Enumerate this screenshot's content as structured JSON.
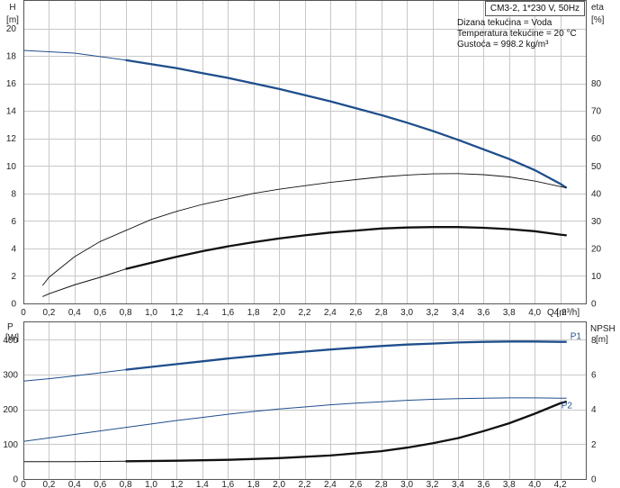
{
  "title": "CM3-2, 1*230 V, 50Hz",
  "info": {
    "line1": "Dizana tekućina = Voda",
    "line2": "Temperatura tekućine = 20 °C",
    "line3": "Gustoća = 998.2 kg/m³"
  },
  "chart_data": [
    {
      "type": "line",
      "xlabel": "Q [m³/h]",
      "xlim": [
        0,
        4.4
      ],
      "xticks": [
        "0",
        "0,2",
        "0,4",
        "0,6",
        "0,8",
        "1,0",
        "1,2",
        "1,4",
        "1,6",
        "1,8",
        "2,0",
        "2,2",
        "2,4",
        "2,6",
        "2,8",
        "3,0",
        "3,2",
        "3,4",
        "3,6",
        "3,8",
        "4,0",
        "4,2"
      ],
      "ylabel_left": [
        "H",
        "[m]"
      ],
      "ylim_left": [
        0,
        22
      ],
      "yticks_left": [
        "0",
        "2",
        "4",
        "6",
        "8",
        "10",
        "12",
        "14",
        "16",
        "18",
        "20"
      ],
      "ylabel_right": [
        "eta",
        "[%]"
      ],
      "ylim_right": [
        0,
        110
      ],
      "yticks_right": [
        "0",
        "10",
        "20",
        "30",
        "40",
        "50",
        "60",
        "70",
        "80"
      ],
      "grid": true,
      "series": [
        {
          "axis": "left",
          "color": "#1f4e8c",
          "x": [
            0,
            0.2,
            0.4,
            0.6,
            0.8,
            1.0,
            1.2,
            1.4,
            1.6,
            1.8,
            2.0,
            2.2,
            2.4,
            2.6,
            2.8,
            3.0,
            3.2,
            3.4,
            3.6,
            3.8,
            4.0,
            4.2,
            4.25
          ],
          "y": [
            18.4,
            18.3,
            18.2,
            17.95,
            17.7,
            17.4,
            17.1,
            16.75,
            16.4,
            16.0,
            15.6,
            15.15,
            14.7,
            14.2,
            13.7,
            13.15,
            12.55,
            11.9,
            11.2,
            10.5,
            9.7,
            8.7,
            8.4
          ]
        },
        {
          "axis": "right",
          "color": "#111111",
          "x": [
            0.15,
            0.2,
            0.4,
            0.6,
            0.8,
            1.0,
            1.2,
            1.4,
            1.6,
            1.8,
            2.0,
            2.2,
            2.4,
            2.6,
            2.8,
            3.0,
            3.2,
            3.4,
            3.6,
            3.8,
            4.0,
            4.2,
            4.25
          ],
          "y": [
            6.5,
            9.5,
            17,
            22.5,
            26.5,
            30.5,
            33.5,
            36,
            38,
            40,
            41.5,
            42.8,
            44,
            45,
            46,
            46.7,
            47.1,
            47.2,
            46.8,
            46,
            44.5,
            42.5,
            42
          ]
        },
        {
          "axis": "left",
          "color": "#111111",
          "x": [
            0.15,
            0.2,
            0.4,
            0.6,
            0.8,
            1.0,
            1.2,
            1.4,
            1.6,
            1.8,
            2.0,
            2.2,
            2.4,
            2.6,
            2.8,
            3.0,
            3.2,
            3.4,
            3.6,
            3.8,
            4.0,
            4.2,
            4.25
          ],
          "y": [
            0.5,
            0.7,
            1.35,
            1.9,
            2.5,
            2.95,
            3.4,
            3.8,
            4.15,
            4.45,
            4.72,
            4.95,
            5.15,
            5.3,
            5.45,
            5.52,
            5.55,
            5.55,
            5.5,
            5.4,
            5.25,
            5.0,
            4.95
          ]
        }
      ]
    },
    {
      "type": "line",
      "xlim": [
        0,
        4.4
      ],
      "ylabel_left": [
        "P",
        "[W]"
      ],
      "ylim_left": [
        0,
        450
      ],
      "yticks_left": [
        "0",
        "100",
        "200",
        "300",
        "400"
      ],
      "ylabel_right": [
        "NPSH",
        "[m]"
      ],
      "ylim_right": [
        0,
        9
      ],
      "yticks_right": [
        "0",
        "2",
        "4",
        "6",
        "8"
      ],
      "grid": true,
      "series": [
        {
          "name": "P1",
          "axis": "left",
          "color": "#1f4e8c",
          "x": [
            0,
            0.2,
            0.4,
            0.6,
            0.8,
            1.0,
            1.2,
            1.4,
            1.6,
            1.8,
            2.0,
            2.2,
            2.4,
            2.6,
            2.8,
            3.0,
            3.2,
            3.4,
            3.6,
            3.8,
            4.0,
            4.2,
            4.25
          ],
          "y": [
            281,
            288,
            296,
            305,
            314,
            322,
            330,
            338,
            346,
            353,
            360,
            366,
            372,
            377,
            382,
            386,
            389,
            392,
            394,
            395,
            395,
            394,
            394
          ]
        },
        {
          "name": "P2",
          "axis": "left",
          "color": "#1f4e8c",
          "x": [
            0,
            0.2,
            0.4,
            0.6,
            0.8,
            1.0,
            1.2,
            1.4,
            1.6,
            1.8,
            2.0,
            2.2,
            2.4,
            2.6,
            2.8,
            3.0,
            3.2,
            3.4,
            3.6,
            3.8,
            4.0,
            4.2,
            4.25
          ],
          "y": [
            108,
            118,
            128,
            138,
            148,
            158,
            168,
            177,
            186,
            194,
            201,
            207,
            213,
            218,
            222,
            226,
            229,
            231,
            232,
            233,
            233,
            232,
            232
          ]
        },
        {
          "axis": "right",
          "color": "#111111",
          "x": [
            0,
            0.4,
            0.8,
            1.2,
            1.6,
            2.0,
            2.4,
            2.8,
            3.0,
            3.2,
            3.4,
            3.6,
            3.8,
            4.0,
            4.2,
            4.25
          ],
          "y": [
            1.0,
            1.0,
            1.02,
            1.05,
            1.1,
            1.2,
            1.35,
            1.6,
            1.8,
            2.05,
            2.35,
            2.75,
            3.2,
            3.75,
            4.35,
            4.45
          ]
        }
      ],
      "labels": [
        "P1",
        "P2"
      ]
    }
  ]
}
